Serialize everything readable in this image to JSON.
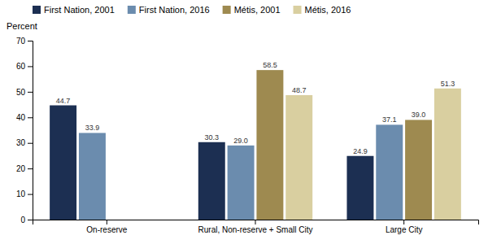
{
  "chart_data": {
    "type": "bar",
    "ylabel": "Percent",
    "categories": [
      "On-reserve",
      "Rural, Non-reserve + Small City",
      "Large City"
    ],
    "series": [
      {
        "name": "First Nation, 2001",
        "color": "#1c2f52",
        "values": [
          44.7,
          30.3,
          24.9
        ],
        "value_labels": [
          "44.7",
          "30.3",
          "24.9"
        ]
      },
      {
        "name": "First Nation, 2016",
        "color": "#6b8cae",
        "values": [
          33.9,
          29.0,
          37.1
        ],
        "value_labels": [
          "33.9",
          "29.0",
          "37.1"
        ]
      },
      {
        "name": "Métis, 2001",
        "color": "#9e8a50",
        "values": [
          null,
          58.5,
          39.0
        ],
        "value_labels": [
          null,
          "58.5",
          "39.0"
        ]
      },
      {
        "name": "Métis, 2016",
        "color": "#d9cfa0",
        "values": [
          null,
          48.7,
          51.3
        ],
        "value_labels": [
          null,
          "48.7",
          "51.3"
        ]
      }
    ],
    "ylim": [
      0,
      70
    ],
    "yticks": [
      0,
      10,
      20,
      30,
      40,
      50,
      60,
      70
    ],
    "grid": false,
    "legend": "top",
    "data_labels": true
  }
}
